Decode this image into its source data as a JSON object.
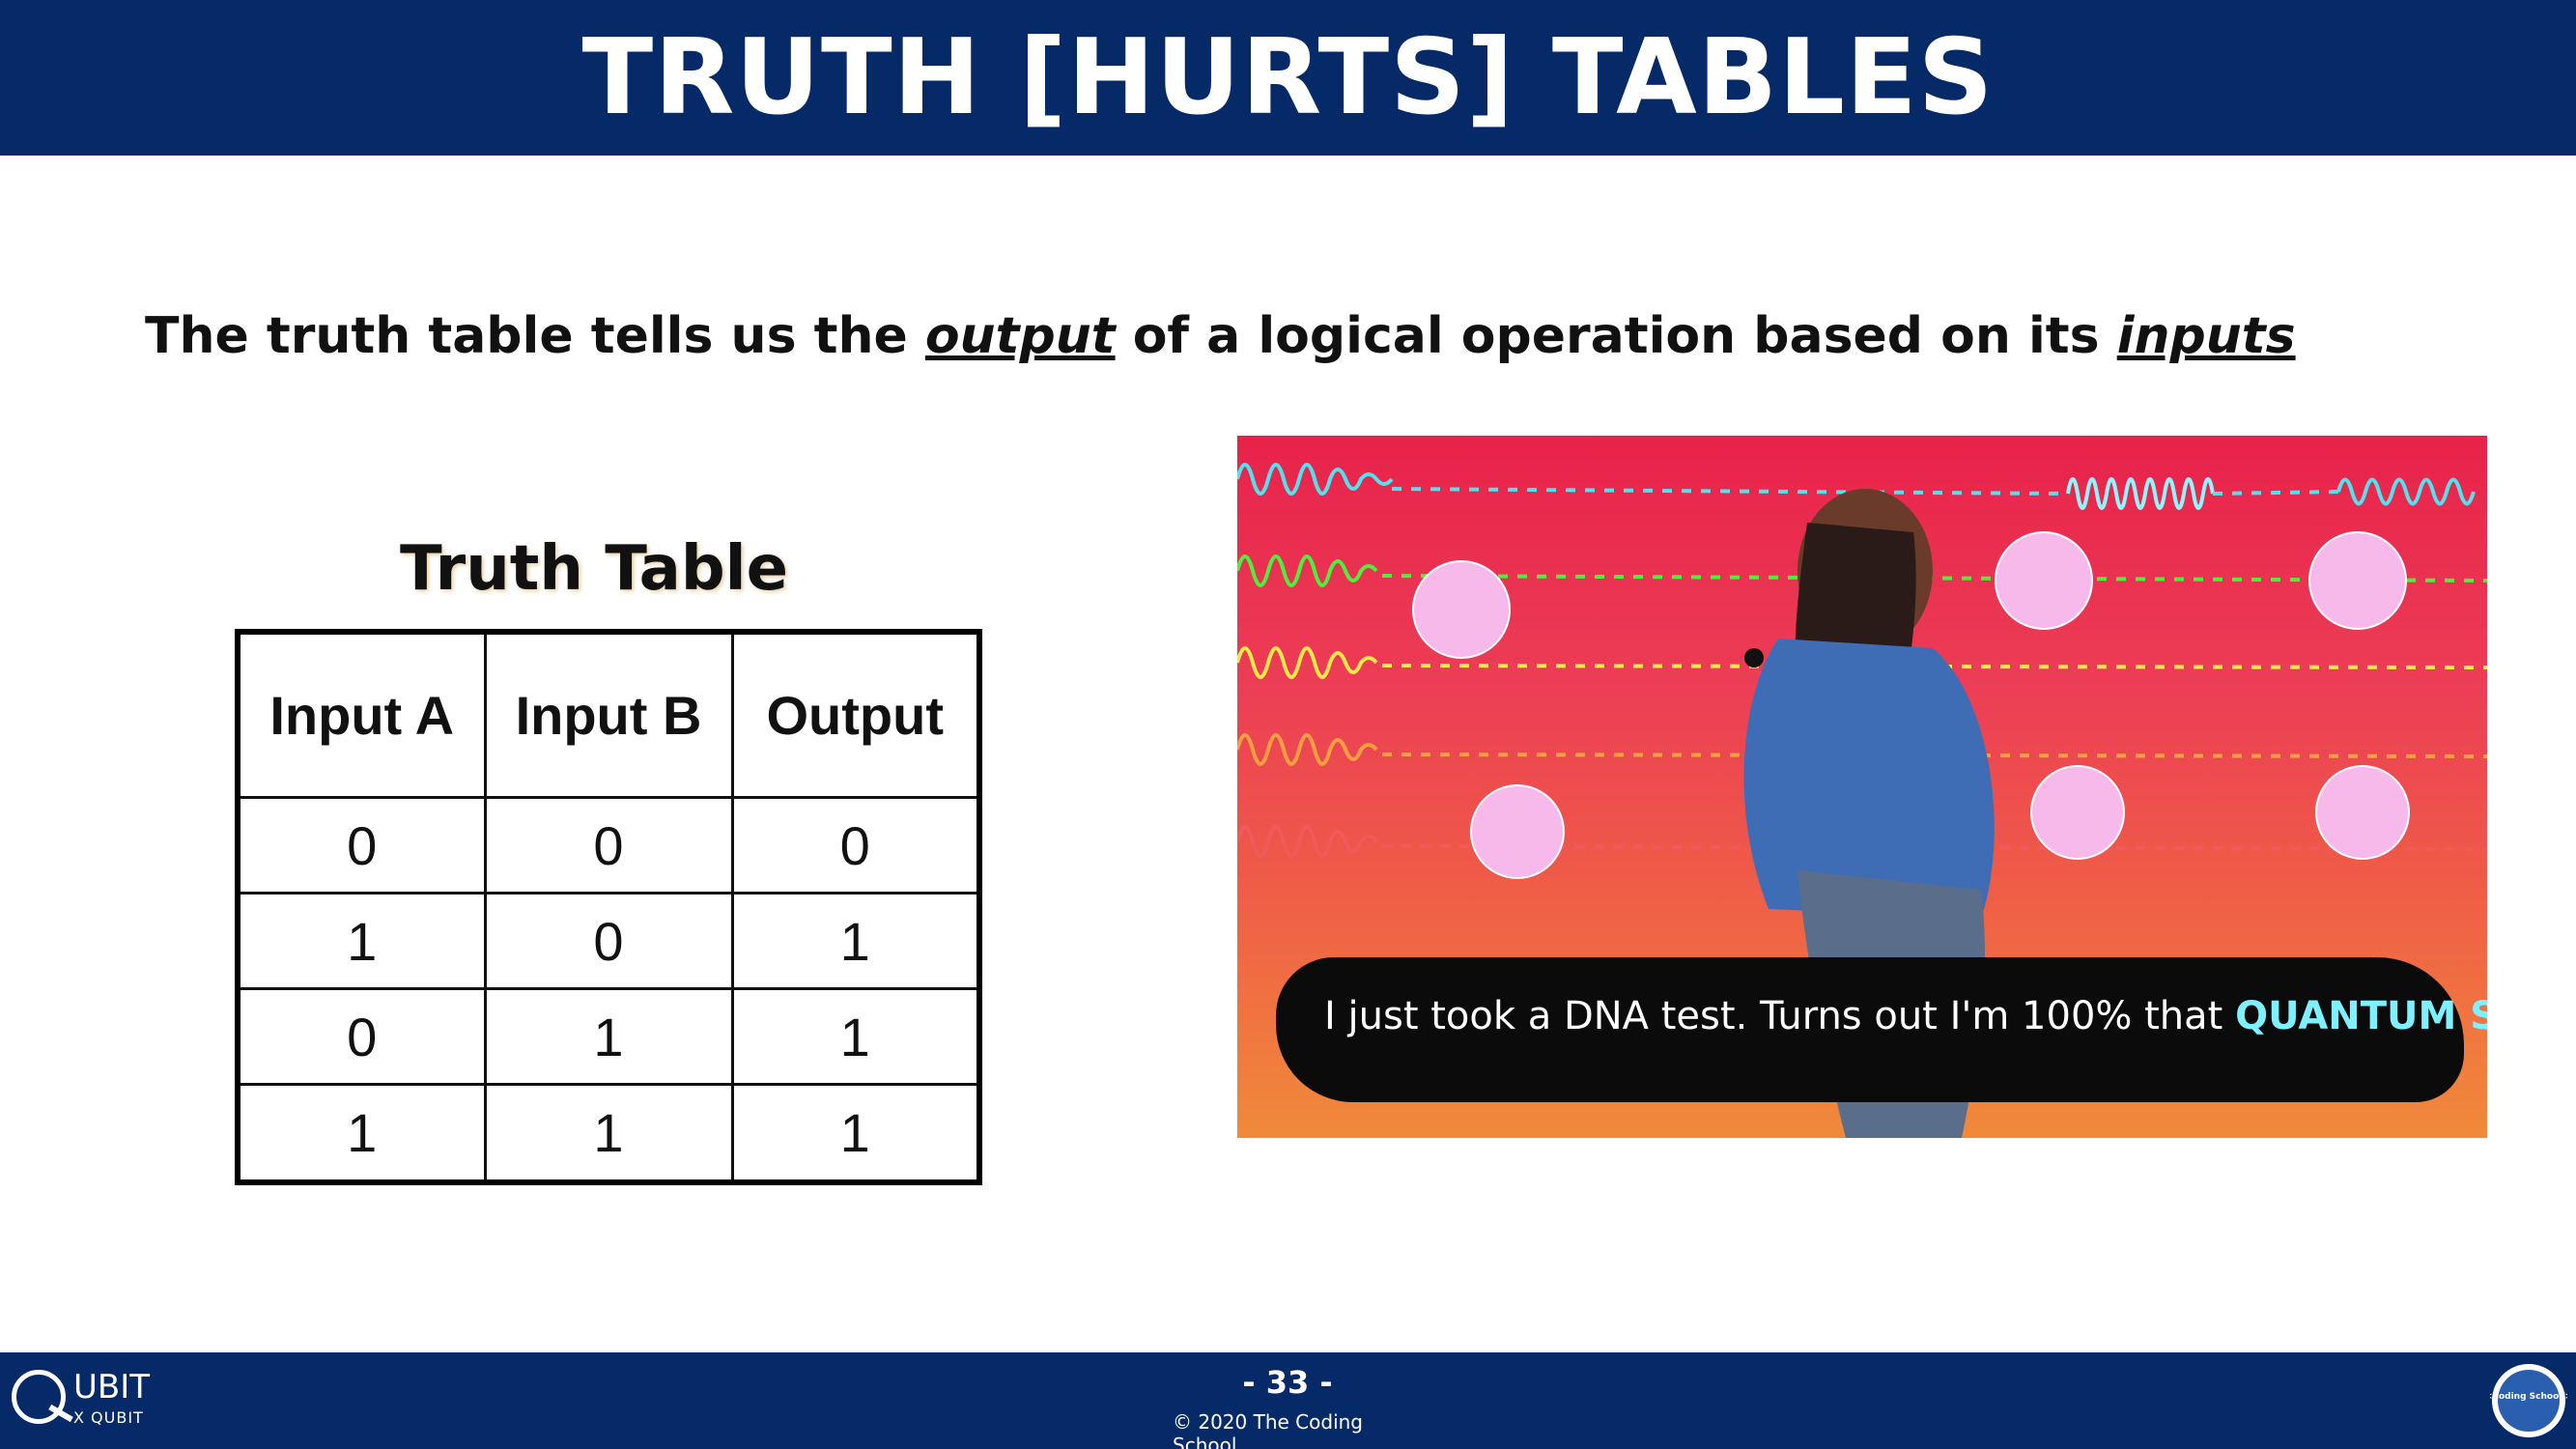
{
  "header": {
    "title": "TRUTH [HURTS] TABLES"
  },
  "subtitle": {
    "part1": "The truth table tells us the ",
    "em1": "output",
    "part2": " of a logical operation based on its ",
    "em2": "inputs"
  },
  "truth_table": {
    "title": "Truth Table",
    "columns": [
      "Input A",
      "Input B",
      "Output"
    ],
    "rows": [
      [
        "0",
        "0",
        "0"
      ],
      [
        "1",
        "0",
        "1"
      ],
      [
        "0",
        "1",
        "1"
      ],
      [
        "1",
        "1",
        "1"
      ]
    ]
  },
  "meme": {
    "caption_plain": "I just took a DNA test. Turns out I'm 100% that ",
    "caption_highlight": "QUANTUM SCIENTIST."
  },
  "footer": {
    "page_number": "- 33 -",
    "copyright": "© 2020 The Coding School",
    "logo_left_main": "UBIT",
    "logo_left_sub": "X QUBIT",
    "logo_right_text": "<Coding School/>"
  },
  "colors": {
    "header_bg": "#062a68",
    "footer_bg": "#062a68",
    "caption_highlight": "#7ff0ff"
  }
}
